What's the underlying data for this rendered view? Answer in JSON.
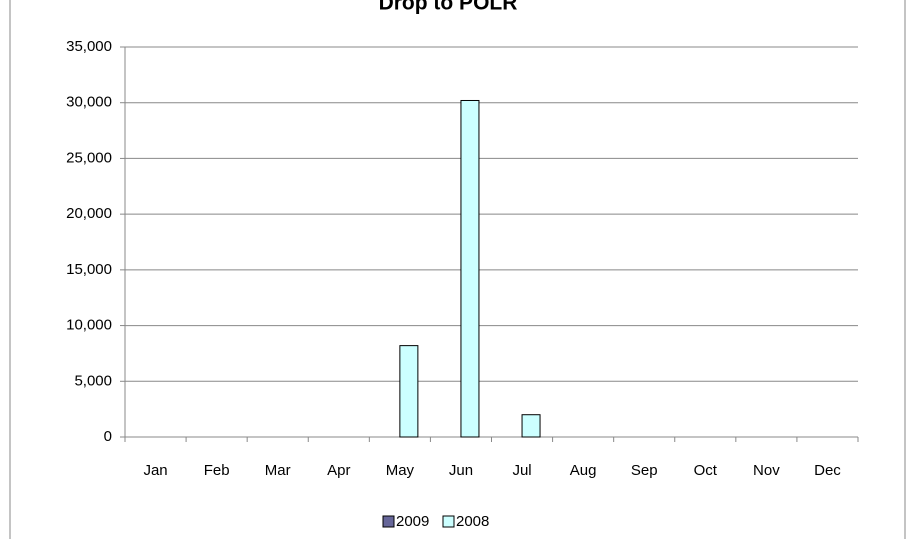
{
  "chart_data": {
    "type": "bar",
    "title": "Drop to POLR",
    "categories": [
      "Jan",
      "Feb",
      "Mar",
      "Apr",
      "May",
      "Jun",
      "Jul",
      "Aug",
      "Sep",
      "Oct",
      "Nov",
      "Dec"
    ],
    "series": [
      {
        "name": "2009",
        "color": "#666699",
        "values": [
          0,
          0,
          0,
          0,
          0,
          0,
          0,
          0,
          0,
          0,
          0,
          0
        ]
      },
      {
        "name": "2008",
        "color": "#ccffff",
        "values": [
          0,
          0,
          0,
          0,
          8200,
          30200,
          2000,
          0,
          0,
          0,
          0,
          0
        ]
      }
    ],
    "ylim": [
      0,
      35000
    ],
    "yticks": [
      0,
      {
        "value": 5000,
        "label": "5,000"
      },
      {
        "value": 10000,
        "label": "10,000"
      },
      {
        "value": 15000,
        "label": "15,000"
      },
      {
        "value": 20000,
        "label": "20,000"
      },
      {
        "value": 25000,
        "label": "25,000"
      },
      {
        "value": 30000,
        "label": "30,000"
      },
      {
        "value": 35000,
        "label": "35,000"
      }
    ],
    "grid": true,
    "legend": "bottom"
  }
}
